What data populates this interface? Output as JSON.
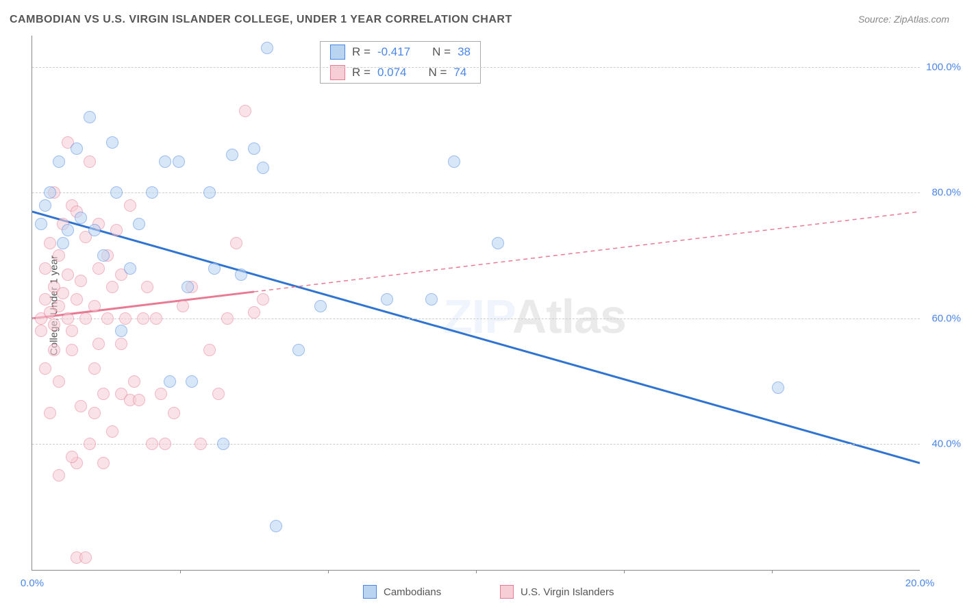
{
  "title": "CAMBODIAN VS U.S. VIRGIN ISLANDER COLLEGE, UNDER 1 YEAR CORRELATION CHART",
  "source": "Source: ZipAtlas.com",
  "ylabel": "College, Under 1 year",
  "watermark_a": "ZIP",
  "watermark_b": "Atlas",
  "chart": {
    "type": "scatter",
    "xlim": [
      0,
      20
    ],
    "ylim": [
      20,
      105
    ],
    "xticks": [
      0,
      20
    ],
    "xtick_labels": [
      "0.0%",
      "20.0%"
    ],
    "xminor": [
      3.33,
      6.67,
      10,
      13.33,
      16.67
    ],
    "yticks": [
      40,
      60,
      80,
      100
    ],
    "ytick_labels": [
      "40.0%",
      "60.0%",
      "80.0%",
      "100.0%"
    ],
    "grid_color": "#cccccc",
    "axis_color": "#888888",
    "background_color": "#ffffff",
    "marker_size": 16,
    "series": [
      {
        "name": "Cambodians",
        "color": "#7eb1e8",
        "fill": "#b9d4f1",
        "border": "#4a86e8",
        "r": "-0.417",
        "n": "38",
        "trend": {
          "x1": 0,
          "y1": 77,
          "x2": 20,
          "y2": 37,
          "width": 3,
          "dash": false,
          "color": "#2f74d0",
          "solid_until": 20
        },
        "points": [
          [
            0.2,
            75
          ],
          [
            0.3,
            78
          ],
          [
            0.4,
            80
          ],
          [
            0.6,
            85
          ],
          [
            0.7,
            72
          ],
          [
            0.8,
            74
          ],
          [
            1.0,
            87
          ],
          [
            1.1,
            76
          ],
          [
            1.3,
            92
          ],
          [
            1.4,
            74
          ],
          [
            1.6,
            70
          ],
          [
            1.8,
            88
          ],
          [
            1.9,
            80
          ],
          [
            2.0,
            58
          ],
          [
            2.2,
            68
          ],
          [
            2.4,
            75
          ],
          [
            2.7,
            80
          ],
          [
            3.0,
            85
          ],
          [
            3.1,
            50
          ],
          [
            3.3,
            85
          ],
          [
            3.5,
            65
          ],
          [
            3.6,
            50
          ],
          [
            4.0,
            80
          ],
          [
            4.1,
            68
          ],
          [
            4.3,
            40
          ],
          [
            4.5,
            86
          ],
          [
            4.7,
            67
          ],
          [
            5.0,
            87
          ],
          [
            5.2,
            84
          ],
          [
            5.3,
            103
          ],
          [
            5.5,
            27
          ],
          [
            6.0,
            55
          ],
          [
            6.5,
            62
          ],
          [
            8.0,
            63
          ],
          [
            9.0,
            63
          ],
          [
            9.5,
            85
          ],
          [
            10.5,
            72
          ],
          [
            16.8,
            49
          ]
        ]
      },
      {
        "name": "U.S. Virgin Islanders",
        "color": "#f2a6b6",
        "fill": "#f7cdd6",
        "border": "#e87a94",
        "r": "0.074",
        "n": "74",
        "trend": {
          "x1": 0,
          "y1": 60,
          "x2": 20,
          "y2": 77,
          "width": 2,
          "dash": true,
          "color": "#e87a94",
          "solid_until": 5
        },
        "points": [
          [
            0.2,
            60
          ],
          [
            0.2,
            58
          ],
          [
            0.3,
            63
          ],
          [
            0.3,
            52
          ],
          [
            0.3,
            68
          ],
          [
            0.4,
            61
          ],
          [
            0.4,
            45
          ],
          [
            0.4,
            72
          ],
          [
            0.5,
            65
          ],
          [
            0.5,
            59
          ],
          [
            0.5,
            55
          ],
          [
            0.5,
            80
          ],
          [
            0.6,
            62
          ],
          [
            0.6,
            70
          ],
          [
            0.6,
            50
          ],
          [
            0.7,
            64
          ],
          [
            0.7,
            75
          ],
          [
            0.8,
            60
          ],
          [
            0.8,
            67
          ],
          [
            0.8,
            88
          ],
          [
            0.9,
            58
          ],
          [
            0.9,
            78
          ],
          [
            0.9,
            55
          ],
          [
            1.0,
            63
          ],
          [
            1.0,
            77
          ],
          [
            1.0,
            37
          ],
          [
            1.1,
            66
          ],
          [
            1.1,
            46
          ],
          [
            1.2,
            60
          ],
          [
            1.2,
            73
          ],
          [
            1.3,
            40
          ],
          [
            1.3,
            85
          ],
          [
            1.4,
            62
          ],
          [
            1.4,
            45
          ],
          [
            1.5,
            68
          ],
          [
            1.5,
            75
          ],
          [
            1.5,
            56
          ],
          [
            1.6,
            48
          ],
          [
            1.6,
            37
          ],
          [
            1.7,
            70
          ],
          [
            1.7,
            60
          ],
          [
            1.8,
            65
          ],
          [
            1.8,
            42
          ],
          [
            1.9,
            74
          ],
          [
            2.0,
            56
          ],
          [
            2.0,
            67
          ],
          [
            2.0,
            48
          ],
          [
            2.1,
            60
          ],
          [
            2.2,
            47
          ],
          [
            2.2,
            78
          ],
          [
            2.3,
            50
          ],
          [
            2.4,
            47
          ],
          [
            2.5,
            60
          ],
          [
            2.6,
            65
          ],
          [
            2.7,
            40
          ],
          [
            2.8,
            60
          ],
          [
            2.9,
            48
          ],
          [
            3.0,
            40
          ],
          [
            3.2,
            45
          ],
          [
            3.4,
            62
          ],
          [
            3.6,
            65
          ],
          [
            3.8,
            40
          ],
          [
            4.0,
            55
          ],
          [
            4.2,
            48
          ],
          [
            4.4,
            60
          ],
          [
            4.6,
            72
          ],
          [
            4.8,
            93
          ],
          [
            5.0,
            61
          ],
          [
            5.2,
            63
          ],
          [
            1.0,
            22
          ],
          [
            1.2,
            22
          ],
          [
            0.6,
            35
          ],
          [
            0.9,
            38
          ],
          [
            1.4,
            52
          ]
        ]
      }
    ]
  },
  "legend_top": {
    "r_label": "R =",
    "n_label": "N ="
  },
  "legend_bottom": [
    {
      "swatch_fill": "#b9d4f1",
      "swatch_border": "#4a86e8",
      "label": "Cambodians"
    },
    {
      "swatch_fill": "#f7cdd6",
      "swatch_border": "#e87a94",
      "label": "U.S. Virgin Islanders"
    }
  ]
}
